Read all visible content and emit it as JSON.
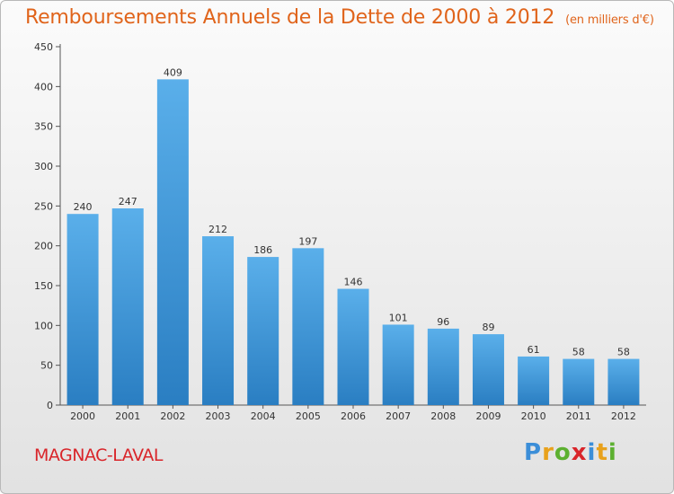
{
  "chart_data": {
    "type": "bar",
    "title": "Remboursements Annuels de la Dette de 2000 à 2012",
    "unit_note": "(en milliers d'€)",
    "categories": [
      "2000",
      "2001",
      "2002",
      "2003",
      "2004",
      "2005",
      "2006",
      "2007",
      "2008",
      "2009",
      "2010",
      "2011",
      "2012"
    ],
    "values": [
      240,
      247,
      409,
      212,
      186,
      197,
      146,
      101,
      96,
      89,
      61,
      58,
      58
    ],
    "yticks": [
      0,
      50,
      100,
      150,
      200,
      250,
      300,
      350,
      400,
      450
    ],
    "ylim": [
      0,
      450
    ],
    "grid": false,
    "bar_color_top": "#5aafea",
    "bar_color_bottom": "#2a7ec2"
  },
  "footer": {
    "commune": "MAGNAC-LAVAL",
    "logo_letters": [
      {
        "char": "P",
        "color": "#3b8ed8"
      },
      {
        "char": "r",
        "color": "#e8a11c"
      },
      {
        "char": "o",
        "color": "#5cb030"
      },
      {
        "char": "x",
        "color": "#d9252a"
      },
      {
        "char": "i",
        "color": "#3b8ed8"
      },
      {
        "char": "t",
        "color": "#e8a11c"
      },
      {
        "char": "i",
        "color": "#5cb030"
      }
    ]
  },
  "colors": {
    "title": "#e0641b",
    "commune": "#d9252a",
    "axis": "#555555"
  }
}
